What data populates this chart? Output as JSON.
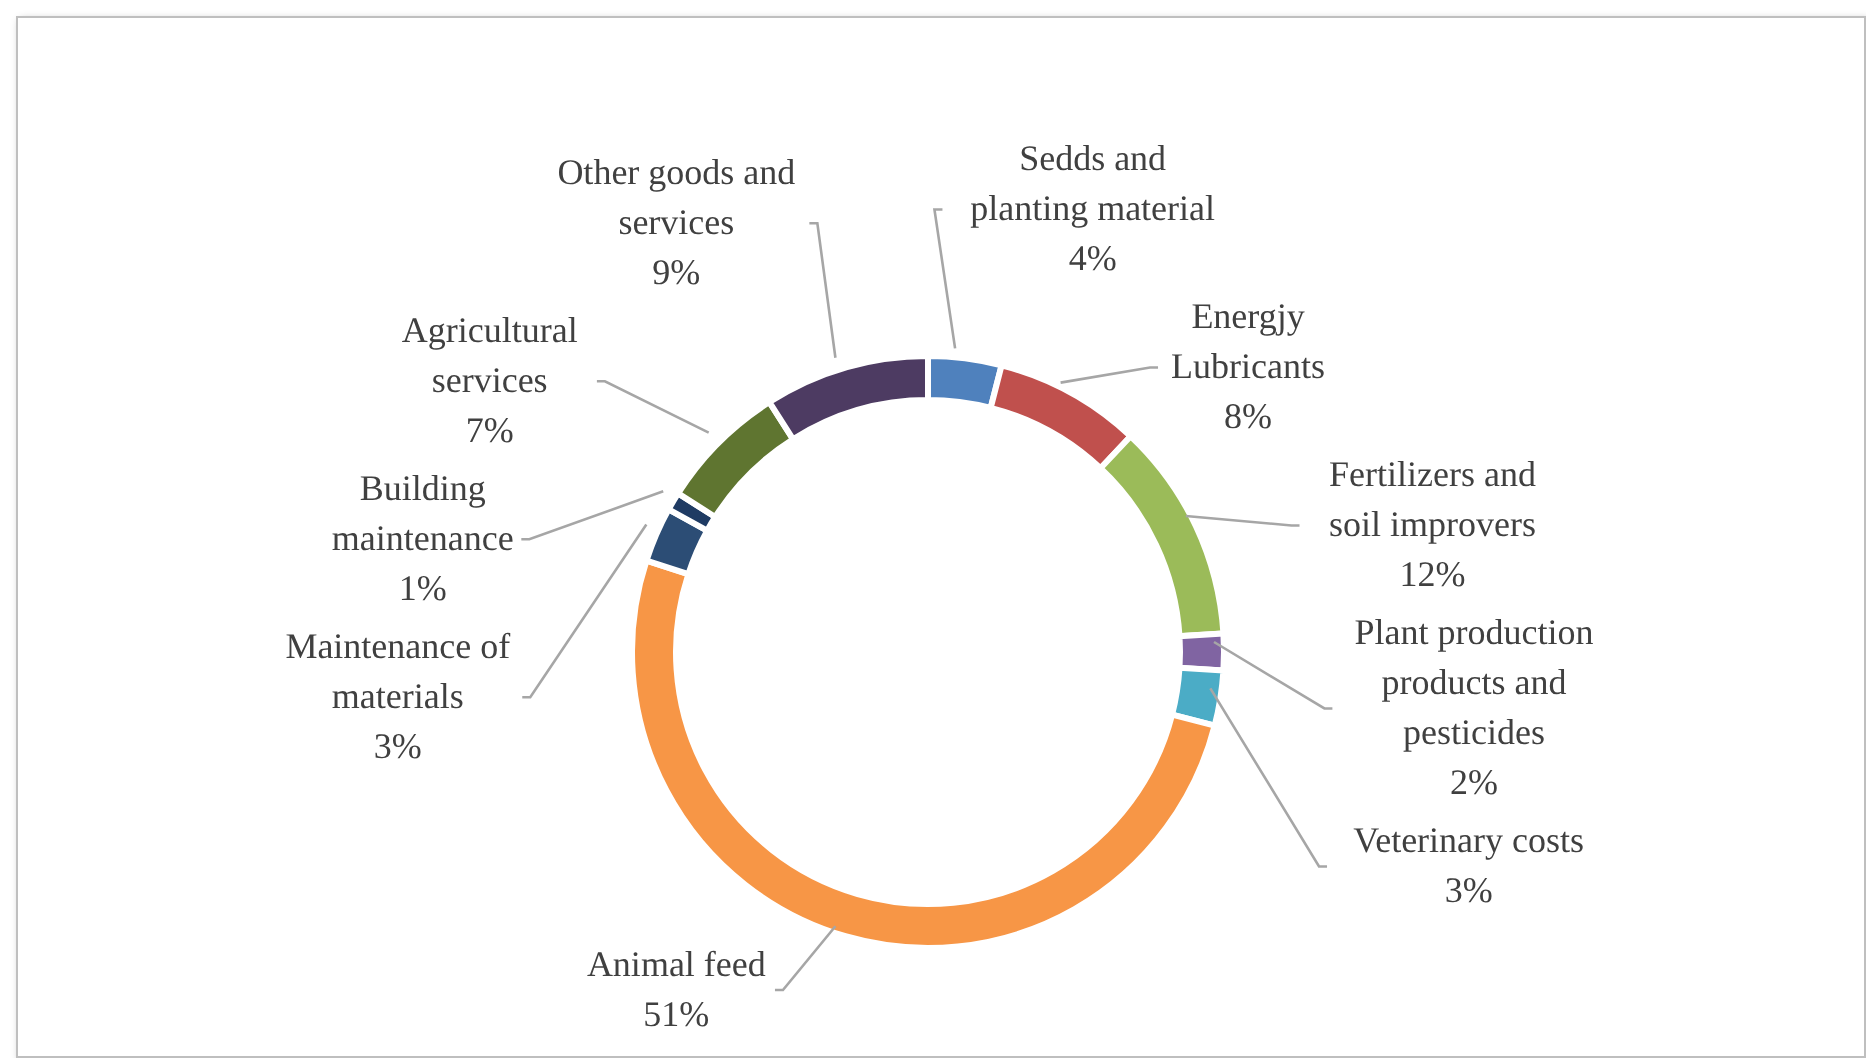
{
  "chart_data": {
    "type": "donut",
    "categories": [
      "Sedds and planting material",
      "Energjy Lubricants",
      "Fertilizers and soil improvers",
      "Plant production products and pesticides",
      "Veterinary costs",
      "Animal feed",
      "Maintenance of materials",
      "Building maintenance",
      "Agricultural services",
      "Other goods and services"
    ],
    "values": [
      4,
      8,
      12,
      2,
      3,
      51,
      3,
      1,
      7,
      9
    ],
    "value_labels": [
      "4%",
      "8%",
      "12%",
      "2%",
      "3%",
      "51%",
      "3%",
      "1%",
      "7%",
      "9%"
    ],
    "colors": [
      "#4f81bd",
      "#c0504d",
      "#9bbb59",
      "#8064a2",
      "#4bacc6",
      "#f79646",
      "#2c4d75",
      "#1f3b63",
      "#5f7530",
      "#4d3b62"
    ]
  }
}
